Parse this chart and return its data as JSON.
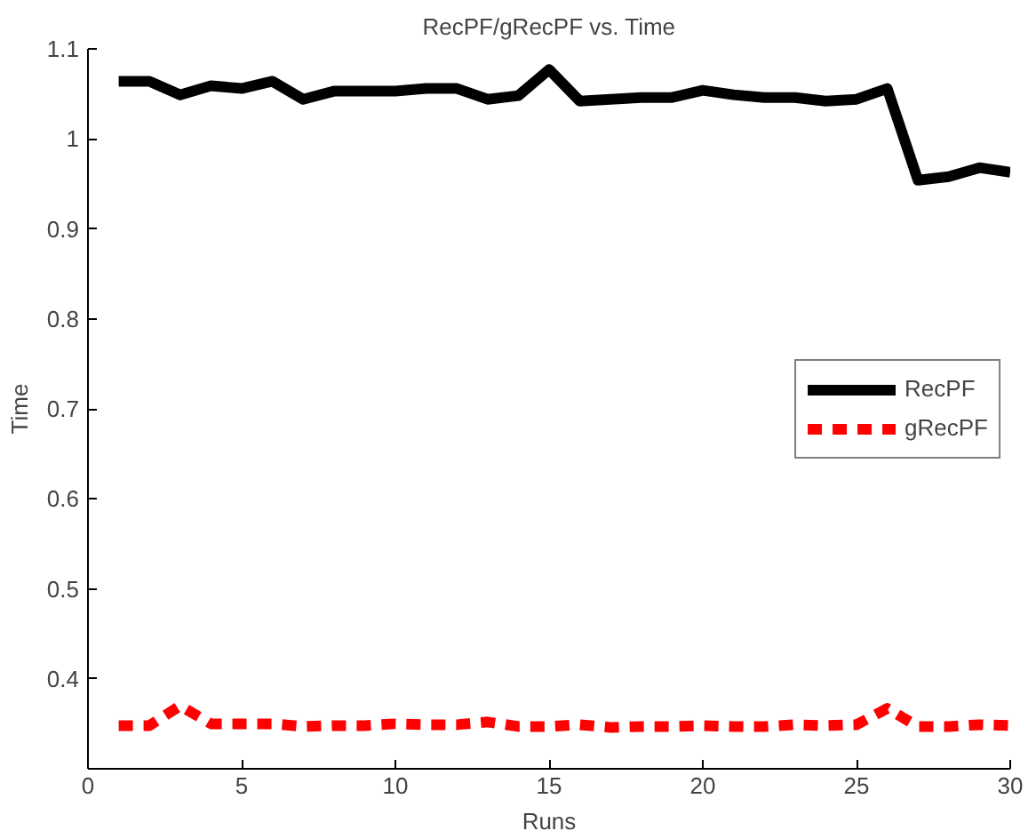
{
  "chart_data": {
    "type": "line",
    "title": "RecPF/gRecPF vs. Time",
    "xlabel": "Runs",
    "ylabel": "Time",
    "x": [
      1,
      2,
      3,
      4,
      5,
      6,
      7,
      8,
      9,
      10,
      11,
      12,
      13,
      14,
      15,
      16,
      17,
      18,
      19,
      20,
      21,
      22,
      23,
      24,
      25,
      26,
      27,
      28,
      29,
      30
    ],
    "series": [
      {
        "name": "RecPF",
        "color": "#000000",
        "line_style": "solid",
        "values": [
          1.064,
          1.064,
          1.049,
          1.059,
          1.056,
          1.064,
          1.044,
          1.053,
          1.053,
          1.053,
          1.056,
          1.056,
          1.044,
          1.048,
          1.077,
          1.042,
          1.044,
          1.046,
          1.046,
          1.054,
          1.049,
          1.046,
          1.046,
          1.042,
          1.044,
          1.056,
          0.954,
          0.958,
          0.968,
          0.963
        ]
      },
      {
        "name": "gRecPF",
        "color": "#ff0000",
        "line_style": "dashed",
        "values": [
          0.348,
          0.348,
          0.37,
          0.35,
          0.35,
          0.35,
          0.347,
          0.348,
          0.348,
          0.35,
          0.349,
          0.349,
          0.352,
          0.347,
          0.347,
          0.349,
          0.346,
          0.347,
          0.347,
          0.348,
          0.347,
          0.347,
          0.349,
          0.348,
          0.349,
          0.367,
          0.347,
          0.347,
          0.349,
          0.348
        ]
      }
    ],
    "xlim": [
      0,
      30
    ],
    "xticks": [
      0,
      5,
      10,
      15,
      20,
      25,
      30
    ],
    "ylim": [
      0.3,
      1.1
    ],
    "yticks": [
      0.4,
      0.5,
      0.6,
      0.7,
      0.8,
      0.9,
      1,
      1.1
    ],
    "grid": false,
    "legend": "right",
    "marker": "none"
  }
}
